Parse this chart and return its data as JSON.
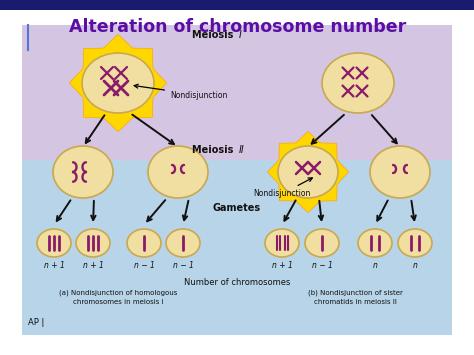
{
  "title": "Alteration of chromosome number",
  "title_color": "#5B0EA6",
  "bg_outer": "#FFFFFF",
  "bg_header": "#1A1A6E",
  "bg_top_panel": "#D4C5E2",
  "bg_bottom_panel": "#B8D4E8",
  "meiosis1_label": "Meiosis I",
  "meiosis2_label": "Meiosis II",
  "gametes_label": "Gametes",
  "nondisjunction_label": "Nondisjunction",
  "num_chromosomes_label": "Number of chromosomes",
  "caption_a": "(a) Nondisjunction of homologous\nchromosomes in meiosis I",
  "caption_b": "(b) Nondisjunction of sister\nchromatids in meiosis II",
  "ap_label": "AP |",
  "gamete_labels_a": [
    "n + 1",
    "n + 1",
    "n − 1",
    "n − 1"
  ],
  "gamete_labels_b": [
    "n + 1",
    "n − 1",
    "n",
    "n"
  ],
  "cell_color": "#F0DFA0",
  "cell_edge": "#C8A850",
  "chr_color": "#8B1A6B",
  "arrow_color": "#111111",
  "label_color": "#111111",
  "highlight_color": "#FFD700",
  "highlight_edge": "#FFA500"
}
